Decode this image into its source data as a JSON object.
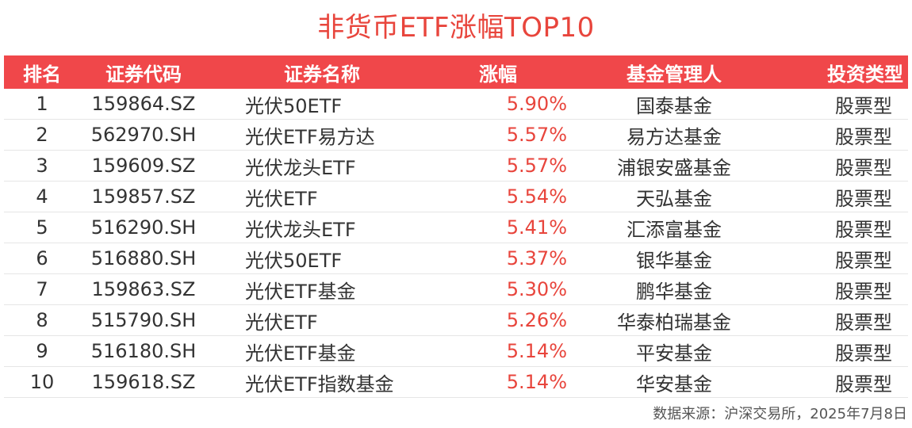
{
  "title": "非货币ETF涨幅TOP10",
  "table": {
    "headers": {
      "rank": "排名",
      "code": "证券代码",
      "name": "证券名称",
      "change": "涨幅",
      "manager": "基金管理人",
      "type": "投资类型"
    },
    "rows": [
      {
        "rank": "1",
        "code": "159864.SZ",
        "name": "光伏50ETF",
        "change": "5.90%",
        "manager": "国泰基金",
        "type": "股票型"
      },
      {
        "rank": "2",
        "code": "562970.SH",
        "name": "光伏ETF易方达",
        "change": "5.57%",
        "manager": "易方达基金",
        "type": "股票型"
      },
      {
        "rank": "3",
        "code": "159609.SZ",
        "name": "光伏龙头ETF",
        "change": "5.57%",
        "manager": "浦银安盛基金",
        "type": "股票型"
      },
      {
        "rank": "4",
        "code": "159857.SZ",
        "name": "光伏ETF",
        "change": "5.54%",
        "manager": "天弘基金",
        "type": "股票型"
      },
      {
        "rank": "5",
        "code": "516290.SH",
        "name": "光伏龙头ETF",
        "change": "5.41%",
        "manager": "汇添富基金",
        "type": "股票型"
      },
      {
        "rank": "6",
        "code": "516880.SH",
        "name": "光伏50ETF",
        "change": "5.37%",
        "manager": "银华基金",
        "type": "股票型"
      },
      {
        "rank": "7",
        "code": "159863.SZ",
        "name": "光伏ETF基金",
        "change": "5.30%",
        "manager": "鹏华基金",
        "type": "股票型"
      },
      {
        "rank": "8",
        "code": "515790.SH",
        "name": "光伏ETF",
        "change": "5.26%",
        "manager": "华泰柏瑞基金",
        "type": "股票型"
      },
      {
        "rank": "9",
        "code": "516180.SH",
        "name": "光伏ETF基金",
        "change": "5.14%",
        "manager": "平安基金",
        "type": "股票型"
      },
      {
        "rank": "10",
        "code": "159618.SZ",
        "name": "光伏ETF指数基金",
        "change": "5.14%",
        "manager": "华安基金",
        "type": "股票型"
      }
    ]
  },
  "source": "数据来源：沪深交易所，2025年7月8日",
  "colors": {
    "accent": "#f0474a",
    "title": "#e8453c",
    "change": "#e8453c"
  }
}
